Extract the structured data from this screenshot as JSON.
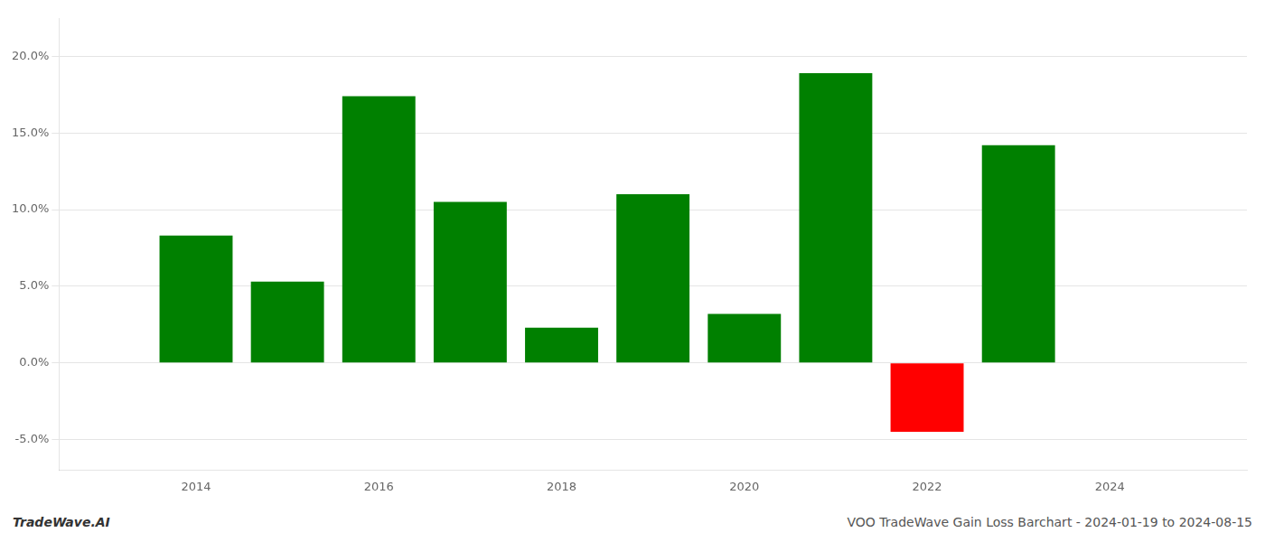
{
  "chart_data": {
    "type": "bar",
    "x": [
      2014,
      2015,
      2016,
      2017,
      2018,
      2019,
      2020,
      2021,
      2022,
      2023
    ],
    "values": [
      0.083,
      0.053,
      0.174,
      0.105,
      0.023,
      0.11,
      0.032,
      0.189,
      -0.045,
      0.142
    ],
    "colors": [
      "#008000",
      "#008000",
      "#008000",
      "#008000",
      "#008000",
      "#008000",
      "#008000",
      "#008000",
      "#ff0000",
      "#008000"
    ],
    "xlim": [
      2012.5,
      2025.5
    ],
    "xticks": [
      2014,
      2016,
      2018,
      2020,
      2022,
      2024
    ],
    "ylim": [
      -0.07,
      0.225
    ],
    "yticks": [
      {
        "value": -0.05,
        "label": "-5.0%"
      },
      {
        "value": 0.0,
        "label": "0.0%"
      },
      {
        "value": 0.05,
        "label": "5.0%"
      },
      {
        "value": 0.1,
        "label": "10.0%"
      },
      {
        "value": 0.15,
        "label": "15.0%"
      },
      {
        "value": 0.2,
        "label": "20.0%"
      }
    ],
    "grid": true,
    "annotations": [
      "TradeWave.AI",
      "VOO TradeWave Gain Loss Barchart - 2024-01-19 to 2024-08-15"
    ]
  }
}
